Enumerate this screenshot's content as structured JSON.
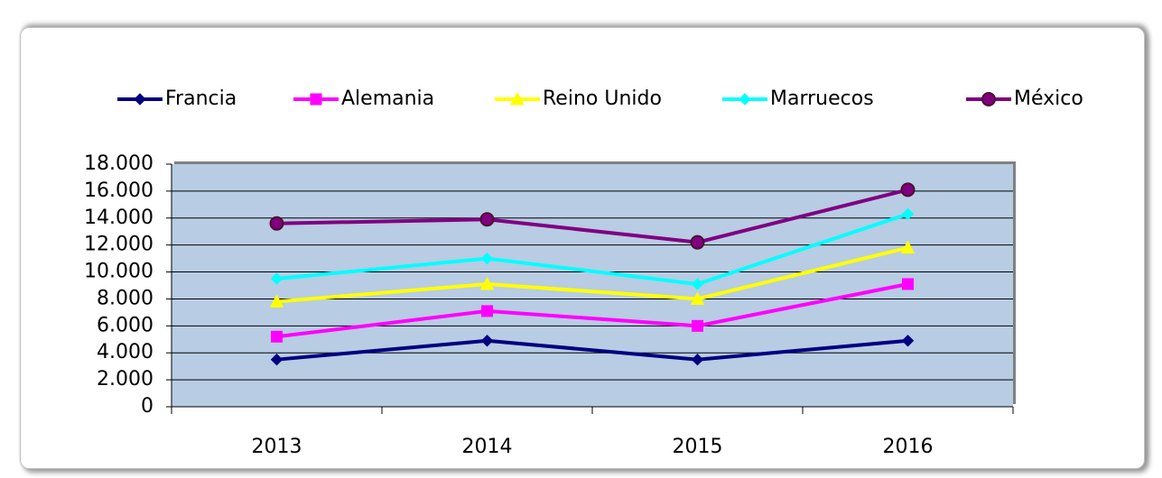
{
  "chart_data": {
    "type": "line",
    "categories": [
      "2013",
      "2014",
      "2015",
      "2016"
    ],
    "series": [
      {
        "name": "Francia",
        "color": "#000080",
        "marker": "diamond",
        "values": [
          3500,
          4900,
          3500,
          4900
        ]
      },
      {
        "name": "Alemania",
        "color": "#ff00ff",
        "marker": "square",
        "values": [
          5200,
          7100,
          6000,
          9100
        ]
      },
      {
        "name": "Reino Unido",
        "color": "#ffff00",
        "marker": "triangle",
        "values": [
          7800,
          9100,
          8000,
          11800
        ]
      },
      {
        "name": "Marruecos",
        "color": "#00ffff",
        "marker": "diamond",
        "values": [
          9500,
          11000,
          9100,
          14300
        ]
      },
      {
        "name": "México",
        "color": "#800080",
        "marker": "circle",
        "values": [
          13600,
          13900,
          12200,
          16100
        ]
      }
    ],
    "ylim": [
      0,
      18000
    ],
    "yticks": [
      0,
      {
        "value": 2000,
        "label": "2.000"
      },
      {
        "value": 4000,
        "label": "4.000"
      },
      {
        "value": 6000,
        "label": "6.000"
      },
      {
        "value": 8000,
        "label": "8.000"
      },
      {
        "value": 10000,
        "label": "10.000"
      },
      {
        "value": 12000,
        "label": "12.000"
      },
      {
        "value": 14000,
        "label": "14.000"
      },
      {
        "value": 16000,
        "label": "16.000"
      },
      {
        "value": 18000,
        "label": "18.000"
      }
    ],
    "grid": true,
    "legend": "top",
    "plot_background": "#b8cce4"
  }
}
